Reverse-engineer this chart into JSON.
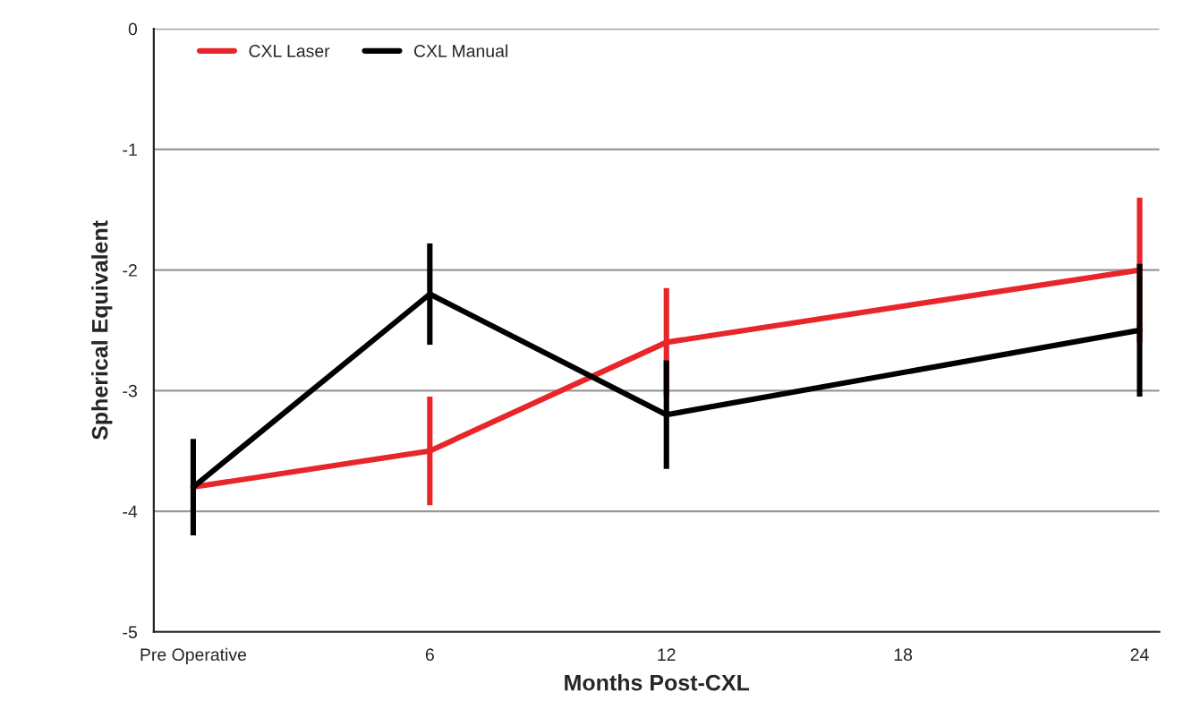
{
  "chart_data": {
    "type": "line",
    "xlabel": "Months Post-CXL",
    "ylabel": "Spherical Equivalent",
    "x": [
      0,
      6,
      12,
      24
    ],
    "series": [
      {
        "name": "CXL Laser",
        "color": "#e8262a",
        "values": [
          -3.8,
          -3.5,
          -2.6,
          -2.0
        ],
        "errors": [
          null,
          0.45,
          0.45,
          0.6
        ]
      },
      {
        "name": "CXL Manual",
        "color": "#000000",
        "values": [
          -3.8,
          -2.2,
          -3.2,
          -2.5
        ],
        "errors": [
          0.4,
          0.42,
          0.45,
          0.55
        ]
      }
    ],
    "xlim": [
      -1,
      24.5
    ],
    "xticks": [
      {
        "value": 0,
        "label": "Pre Operative"
      },
      6,
      12,
      18,
      24
    ],
    "ylim": [
      -5,
      0
    ],
    "yticks": [
      -5,
      -4,
      -3,
      -2,
      -1,
      0
    ],
    "grid": "y",
    "legend": "top left",
    "marker": "none",
    "line_style": "solid"
  }
}
